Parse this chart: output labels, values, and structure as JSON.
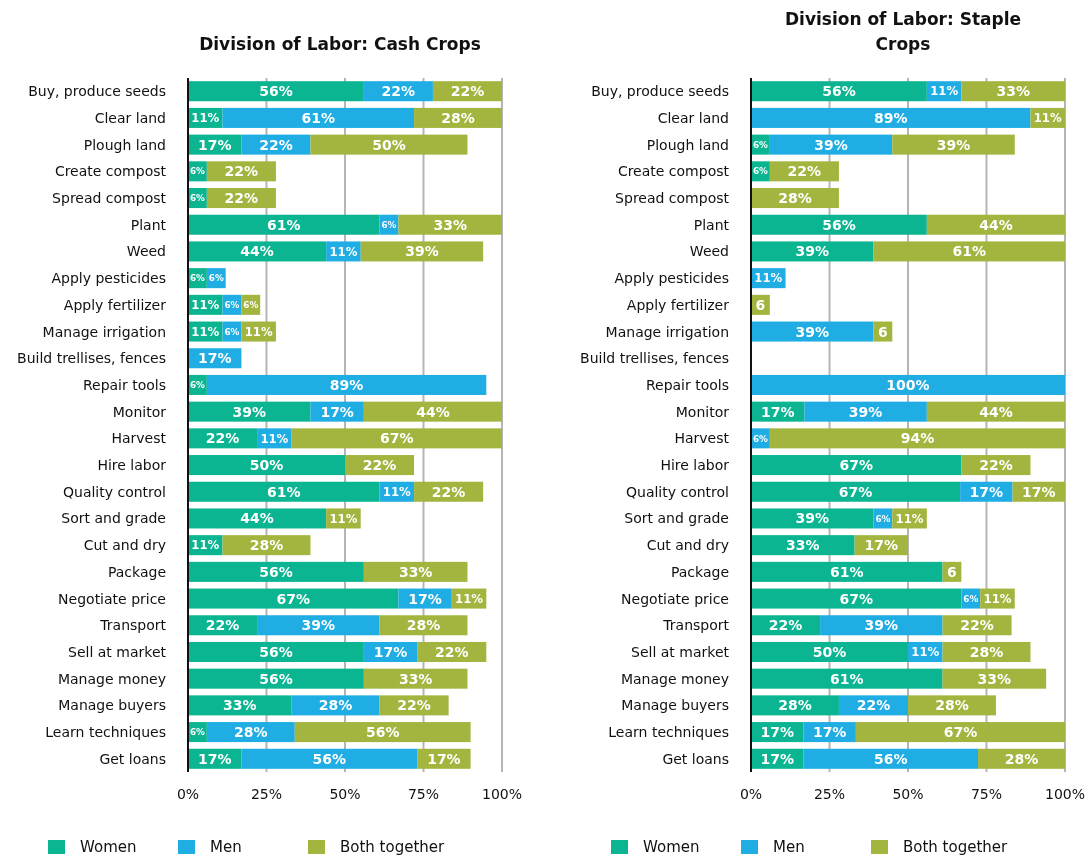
{
  "chart_data": [
    {
      "type": "bar",
      "orientation": "horizontal",
      "stacked": true,
      "title": "Division of Labor: Cash Crops",
      "grid": "x",
      "legend": "bottom",
      "categories": [
        "Buy, produce seeds",
        "Clear land",
        "Plough land",
        "Create compost",
        "Spread compost",
        "Plant",
        "Weed",
        "Apply pesticides",
        "Apply fertilizer",
        "Manage irrigation",
        "Build trellises, fences",
        "Repair tools",
        "Monitor",
        "Harvest",
        "Hire labor",
        "Quality control",
        "Sort and grade",
        "Cut and dry",
        "Package",
        "Negotiate price",
        "Transport",
        "Sell at market",
        "Manage money",
        "Manage buyers",
        "Learn techniques",
        "Get loans"
      ],
      "xlim": [
        0,
        100
      ],
      "xticks": [
        {
          "value": 0,
          "label": "0%"
        },
        {
          "value": 25,
          "label": "25%"
        },
        {
          "value": 50,
          "label": "50%"
        },
        {
          "value": 75,
          "label": "75%"
        },
        {
          "value": 100,
          "label": "100%"
        }
      ],
      "series": [
        {
          "name": "Women",
          "color": "#0bb592",
          "values": [
            56,
            11,
            17,
            6,
            6,
            61,
            44,
            6,
            11,
            11,
            null,
            6,
            39,
            22,
            50,
            61,
            44,
            11,
            56,
            67,
            22,
            56,
            56,
            33,
            6,
            17
          ],
          "value_labels": [
            "56%",
            "11%",
            "17%",
            "6%",
            "6%",
            "61%",
            "44%",
            "6%",
            "11%",
            "11%",
            null,
            "6%",
            "39%",
            "22%",
            "50%",
            "61%",
            "44%",
            "11%",
            "56%",
            "67%",
            "22%",
            "56%",
            "56%",
            "33%",
            "6%",
            "17%"
          ]
        },
        {
          "name": "Men",
          "color": "#1fade3",
          "values": [
            22,
            61,
            22,
            null,
            null,
            6,
            11,
            6,
            6,
            6,
            17,
            89,
            17,
            11,
            null,
            11,
            null,
            null,
            null,
            17,
            39,
            17,
            null,
            28,
            28,
            56
          ],
          "value_labels": [
            "22%",
            "61%",
            "22%",
            null,
            null,
            "6%",
            "11%",
            "6%",
            "6%",
            "6%",
            "17%",
            "89%",
            "17%",
            "11%",
            null,
            "11%",
            null,
            null,
            null,
            "17%",
            "39%",
            "17%",
            null,
            "28%",
            "28%",
            "56%"
          ]
        },
        {
          "name": "Both together",
          "color": "#a3b53f",
          "values": [
            22,
            28,
            50,
            22,
            22,
            33,
            39,
            null,
            6,
            11,
            null,
            null,
            44,
            67,
            22,
            22,
            11,
            28,
            33,
            11,
            28,
            22,
            33,
            22,
            56,
            17
          ],
          "value_labels": [
            "22%",
            "28%",
            "50%",
            "22%",
            "22%",
            "33%",
            "39%",
            null,
            "6%",
            "11%",
            null,
            null,
            "44%",
            "67%",
            "22%",
            "22%",
            "11%",
            "28%",
            "33%",
            "11%",
            "28%",
            "22%",
            "33%",
            "22%",
            "56%",
            "17%"
          ]
        }
      ]
    },
    {
      "type": "bar",
      "orientation": "horizontal",
      "stacked": true,
      "title": "Division of Labor: Staple Crops",
      "grid": "x",
      "legend": "bottom",
      "categories": [
        "Buy, produce seeds",
        "Clear land",
        "Plough land",
        "Create compost",
        "Spread compost",
        "Plant",
        "Weed",
        "Apply pesticides",
        "Apply fertilizer",
        "Manage irrigation",
        "Build trellises, fences",
        "Repair tools",
        "Monitor",
        "Harvest",
        "Hire labor",
        "Quality control",
        "Sort and grade",
        "Cut and dry",
        "Package",
        "Negotiate price",
        "Transport",
        "Sell at market",
        "Manage money",
        "Manage buyers",
        "Learn techniques",
        "Get loans"
      ],
      "xlim": [
        0,
        100
      ],
      "xticks": [
        {
          "value": 0,
          "label": "0%"
        },
        {
          "value": 25,
          "label": "25%"
        },
        {
          "value": 50,
          "label": "50%"
        },
        {
          "value": 75,
          "label": "75%"
        },
        {
          "value": 100,
          "label": "100%"
        }
      ],
      "series": [
        {
          "name": "Women",
          "color": "#0bb592",
          "values": [
            56,
            null,
            6,
            6,
            null,
            56,
            39,
            null,
            null,
            null,
            null,
            null,
            17,
            null,
            67,
            66.6,
            39,
            33,
            61,
            67,
            22,
            50,
            61,
            28,
            16.7,
            16.7
          ],
          "value_labels": [
            "56%",
            null,
            "6%",
            "6%",
            null,
            "56%",
            "39%",
            null,
            null,
            null,
            null,
            null,
            "17%",
            null,
            "67%",
            "67%",
            "39%",
            "33%",
            "61%",
            "67%",
            "22%",
            "50%",
            "61%",
            "28%",
            "17%",
            "17%"
          ]
        },
        {
          "name": "Men",
          "color": "#1fade3",
          "values": [
            11,
            89,
            39,
            null,
            null,
            null,
            null,
            11,
            null,
            39,
            null,
            100,
            39,
            6,
            null,
            16.7,
            6,
            null,
            null,
            6,
            39,
            11,
            null,
            22,
            16.7,
            55.6
          ],
          "value_labels": [
            "11%",
            "89%",
            "39%",
            null,
            null,
            null,
            null,
            "11%",
            null,
            "39%",
            null,
            "100%",
            "39%",
            "6%",
            null,
            "17%",
            "6%",
            null,
            null,
            "6%",
            "39%",
            "11%",
            null,
            "22%",
            "17%",
            "56%"
          ]
        },
        {
          "name": "Both together",
          "color": "#a3b53f",
          "values": [
            33,
            11,
            39,
            22,
            28,
            44,
            61,
            null,
            6,
            6,
            null,
            null,
            44,
            94,
            22,
            16.7,
            11,
            17,
            6,
            11,
            22,
            28,
            33,
            28,
            66.6,
            27.7
          ],
          "value_labels": [
            "33%",
            "11%",
            "39%",
            "22%",
            "28%",
            "44%",
            "61%",
            null,
            "6",
            "6",
            null,
            null,
            "44%",
            "94%",
            "22%",
            "17%",
            "11%",
            "17%",
            "6",
            "11%",
            "22%",
            "28%",
            "33%",
            "28%",
            "67%",
            "28%"
          ]
        }
      ]
    }
  ]
}
